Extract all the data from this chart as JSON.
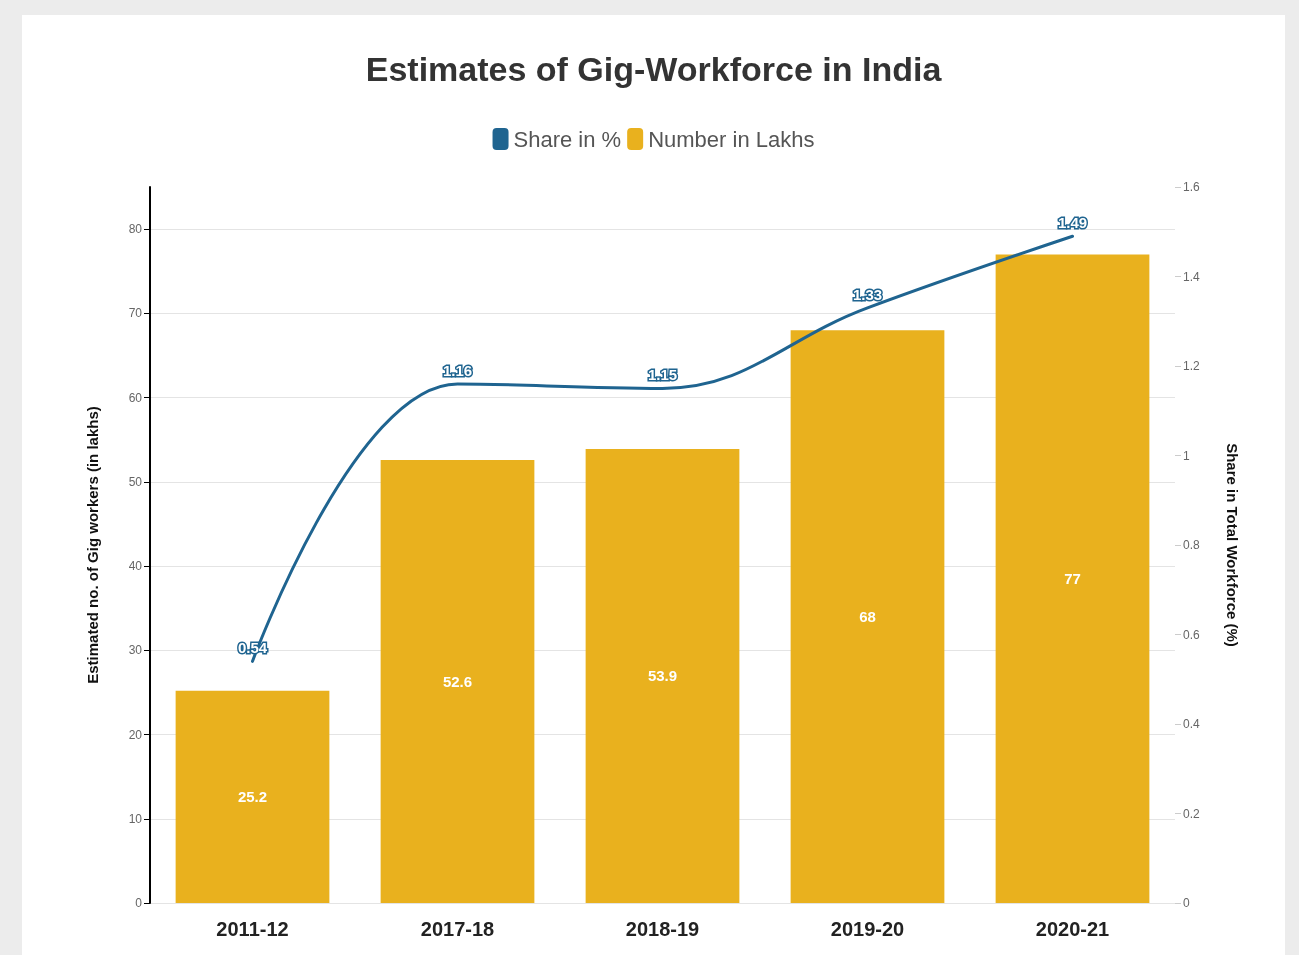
{
  "chart_data": {
    "type": "bar",
    "title": "Estimates of Gig-Workforce in India",
    "ylabel": "Estimated no. of Gig workers (in lakhs)",
    "y2label": "Share in Total Workforce (%)",
    "categories": [
      "2011-12",
      "2017-18",
      "2018-19",
      "2019-20",
      "2020-21"
    ],
    "series": [
      {
        "name": "Share in %",
        "type": "line",
        "axis": "y2",
        "color": "#1f6490",
        "values": [
          0.54,
          1.16,
          1.15,
          1.33,
          1.49
        ]
      },
      {
        "name": "Number in Lakhs",
        "color": "#e9b11e",
        "values": [
          25.2,
          52.6,
          53.9,
          68,
          77
        ]
      }
    ],
    "ylim": [
      0,
      85
    ],
    "yticks": [
      0,
      10,
      20,
      30,
      40,
      50,
      60,
      70,
      80
    ],
    "y2lim": [
      0,
      1.6
    ],
    "y2ticks": [
      0,
      0.2,
      0.4,
      0.6,
      0.8,
      1,
      1.2,
      1.4,
      1.6
    ],
    "grid": "y",
    "legend": "top",
    "data_labels": true,
    "marker": "none",
    "line_style": "solid"
  }
}
